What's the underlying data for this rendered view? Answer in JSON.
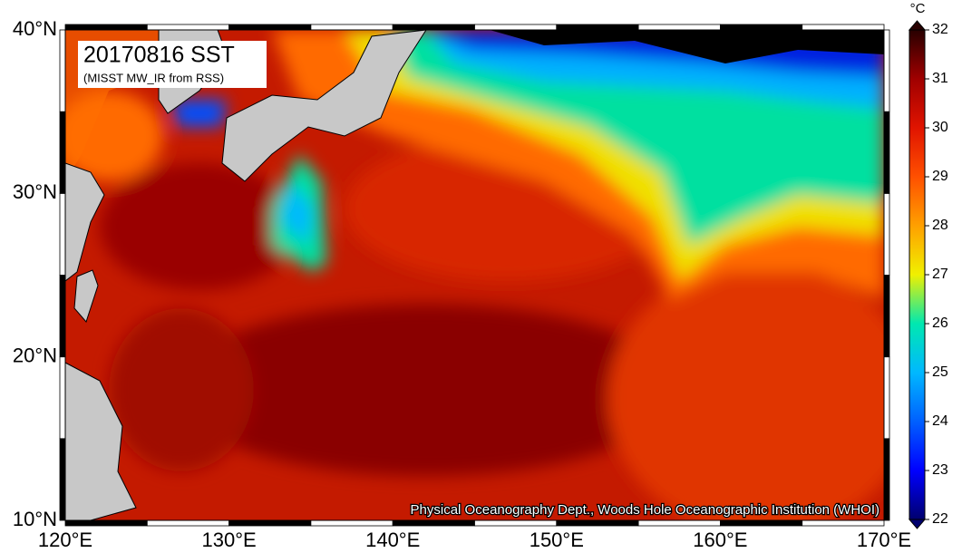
{
  "map": {
    "title": "20170816 SST",
    "subtitle": "(MISST MW_IR from RSS)",
    "credit": "Physical Oceanography Dept., Woods Hole Oceanographic Institution (WHOI)",
    "lon_range": [
      120,
      170
    ],
    "lat_range": [
      10,
      40
    ],
    "lon_ticks": [
      {
        "value": 120,
        "label": "120°E"
      },
      {
        "value": 130,
        "label": "130°E"
      },
      {
        "value": 140,
        "label": "140°E"
      },
      {
        "value": 150,
        "label": "150°E"
      },
      {
        "value": 160,
        "label": "160°E"
      },
      {
        "value": 170,
        "label": "170°E"
      }
    ],
    "lat_ticks": [
      {
        "value": 10,
        "label": "10°N"
      },
      {
        "value": 20,
        "label": "20°N"
      },
      {
        "value": 30,
        "label": "30°N"
      },
      {
        "value": 40,
        "label": "40°N"
      }
    ]
  },
  "colorbar": {
    "unit": "°C",
    "range": [
      22,
      32
    ],
    "ticks": [
      22,
      23,
      24,
      25,
      26,
      27,
      28,
      29,
      30,
      31,
      32
    ],
    "colors": [
      "#00006e",
      "#0000ff",
      "#0060ff",
      "#00b8ff",
      "#00e8b0",
      "#f0f000",
      "#ffa000",
      "#ff5000",
      "#e01400",
      "#a00000",
      "#280000"
    ]
  }
}
